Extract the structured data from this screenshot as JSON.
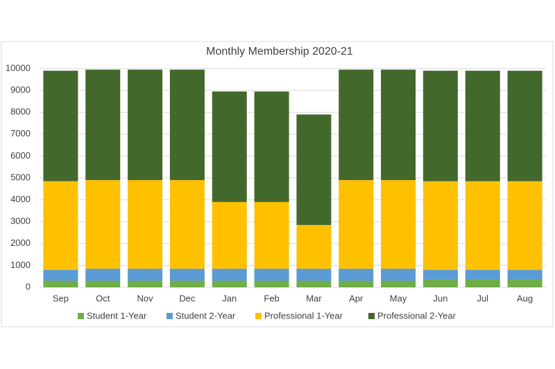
{
  "chart_data": {
    "type": "stacked_bar",
    "title": "Monthly Membership 2020-21",
    "categories": [
      "Sep",
      "Oct",
      "Nov",
      "Dec",
      "Jan",
      "Feb",
      "Mar",
      "Apr",
      "May",
      "Jun",
      "Jul",
      "Aug"
    ],
    "series": [
      {
        "name": "Student 1-Year",
        "color": "#70ad47",
        "values": [
          300,
          300,
          300,
          300,
          300,
          300,
          300,
          300,
          300,
          350,
          350,
          350
        ]
      },
      {
        "name": "Student 2-Year",
        "color": "#5b9bd5",
        "values": [
          500,
          550,
          550,
          550,
          550,
          550,
          550,
          550,
          550,
          450,
          450,
          450
        ]
      },
      {
        "name": "Professional 1-Year",
        "color": "#ffc000",
        "values": [
          4050,
          4050,
          4050,
          4050,
          3050,
          3050,
          2000,
          4050,
          4050,
          4050,
          4050,
          4050
        ]
      },
      {
        "name": "Professional 2-Year",
        "color": "#43682b",
        "values": [
          5050,
          5050,
          5050,
          5050,
          5050,
          5050,
          5050,
          5050,
          5050,
          5050,
          5050,
          5050
        ]
      }
    ],
    "ylim": [
      0,
      10000
    ],
    "yticks": [
      0,
      1000,
      2000,
      3000,
      4000,
      5000,
      6000,
      7000,
      8000,
      9000,
      10000
    ],
    "grid": true,
    "legend": "bottom"
  }
}
